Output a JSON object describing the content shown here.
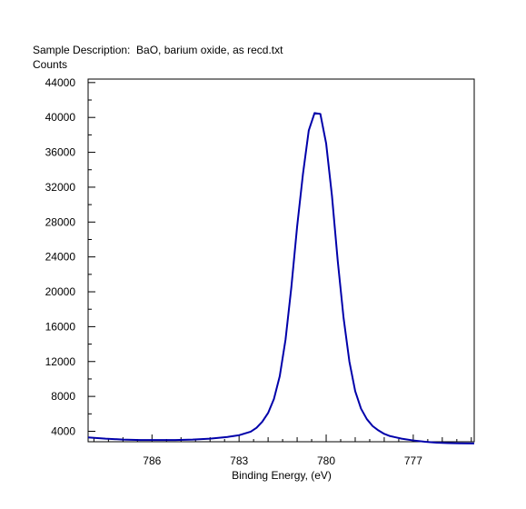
{
  "chart_data": {
    "type": "line",
    "title": "Sample Description:  BaO, barium oxide, as recd.txt",
    "ylabel": "Counts",
    "xlabel": "Binding Energy, (eV)",
    "x_reversed": true,
    "xlim": [
      788.2,
      774.9
    ],
    "ylim": [
      2800,
      44400
    ],
    "x_ticks": [
      786,
      783,
      780,
      777
    ],
    "x_tick_labels": [
      "786",
      "783",
      "780",
      "777"
    ],
    "y_ticks": [
      4000,
      8000,
      12000,
      16000,
      20000,
      24000,
      28000,
      32000,
      36000,
      40000,
      44000
    ],
    "y_tick_labels": [
      "4000",
      "8000",
      "12000",
      "16000",
      "20000",
      "24000",
      "28000",
      "32000",
      "36000",
      "40000",
      "44000"
    ],
    "grid": false,
    "legend": "none",
    "series": [
      {
        "color": "#0000aa",
        "x": [
          788.2,
          787.6,
          787.0,
          786.4,
          785.8,
          785.2,
          784.6,
          784.0,
          783.4,
          783.0,
          782.6,
          782.4,
          782.2,
          782.0,
          781.8,
          781.6,
          781.4,
          781.2,
          781.0,
          780.8,
          780.6,
          780.4,
          780.2,
          780.0,
          779.8,
          779.6,
          779.4,
          779.2,
          779.0,
          778.8,
          778.6,
          778.4,
          778.2,
          778.0,
          777.8,
          777.6,
          777.4,
          777.0,
          776.6,
          776.2,
          775.8,
          775.4,
          774.9
        ],
        "y": [
          3300,
          3150,
          3050,
          3000,
          3000,
          3000,
          3050,
          3150,
          3350,
          3550,
          3950,
          4400,
          5100,
          6100,
          7700,
          10300,
          14500,
          20500,
          27500,
          33500,
          38500,
          40500,
          40400,
          37000,
          31000,
          23500,
          17000,
          12000,
          8600,
          6600,
          5400,
          4600,
          4100,
          3700,
          3450,
          3300,
          3150,
          2950,
          2800,
          2700,
          2650,
          2620,
          2600
        ]
      }
    ]
  }
}
